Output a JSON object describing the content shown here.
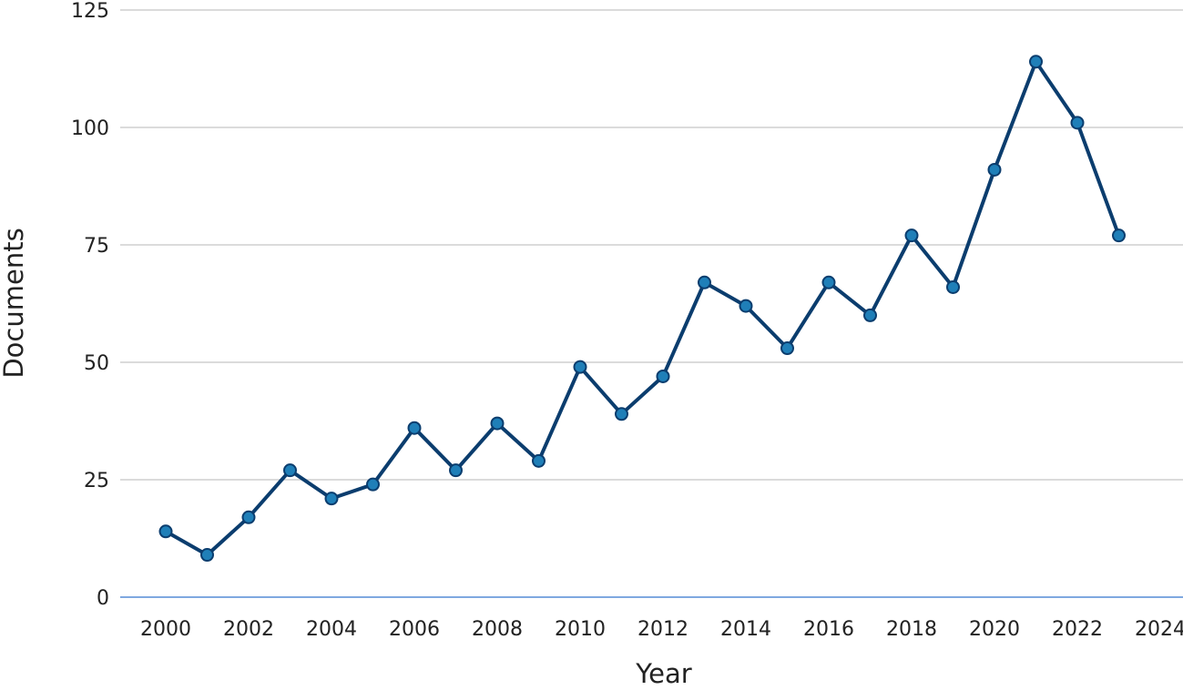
{
  "chart_data": {
    "type": "line",
    "title": "",
    "xlabel": "Year",
    "ylabel": "Documents",
    "xlim": [
      2000,
      2024
    ],
    "ylim": [
      0,
      125
    ],
    "x_ticks": [
      2000,
      2002,
      2004,
      2006,
      2008,
      2010,
      2012,
      2014,
      2016,
      2018,
      2020,
      2022,
      2024
    ],
    "y_ticks": [
      0,
      25,
      50,
      75,
      100,
      125
    ],
    "grid": "horizontal",
    "legend": "none",
    "colors": {
      "line": "#0b3d6e",
      "marker": "#1f7fb8",
      "marker_stroke": "#0b3d6e",
      "grid": "#cfcfcf",
      "baseline": "#7fa8e0"
    },
    "series": [
      {
        "x": [
          2000,
          2001,
          2002,
          2003,
          2004,
          2005,
          2006,
          2007,
          2008,
          2009,
          2010,
          2011,
          2012,
          2013,
          2014,
          2015,
          2016,
          2017,
          2018,
          2019,
          2020,
          2021,
          2022,
          2023
        ],
        "values": [
          14,
          9,
          17,
          27,
          21,
          24,
          36,
          27,
          37,
          29,
          49,
          39,
          47,
          67,
          62,
          53,
          67,
          60,
          77,
          66,
          91,
          114,
          101,
          77
        ]
      }
    ]
  }
}
